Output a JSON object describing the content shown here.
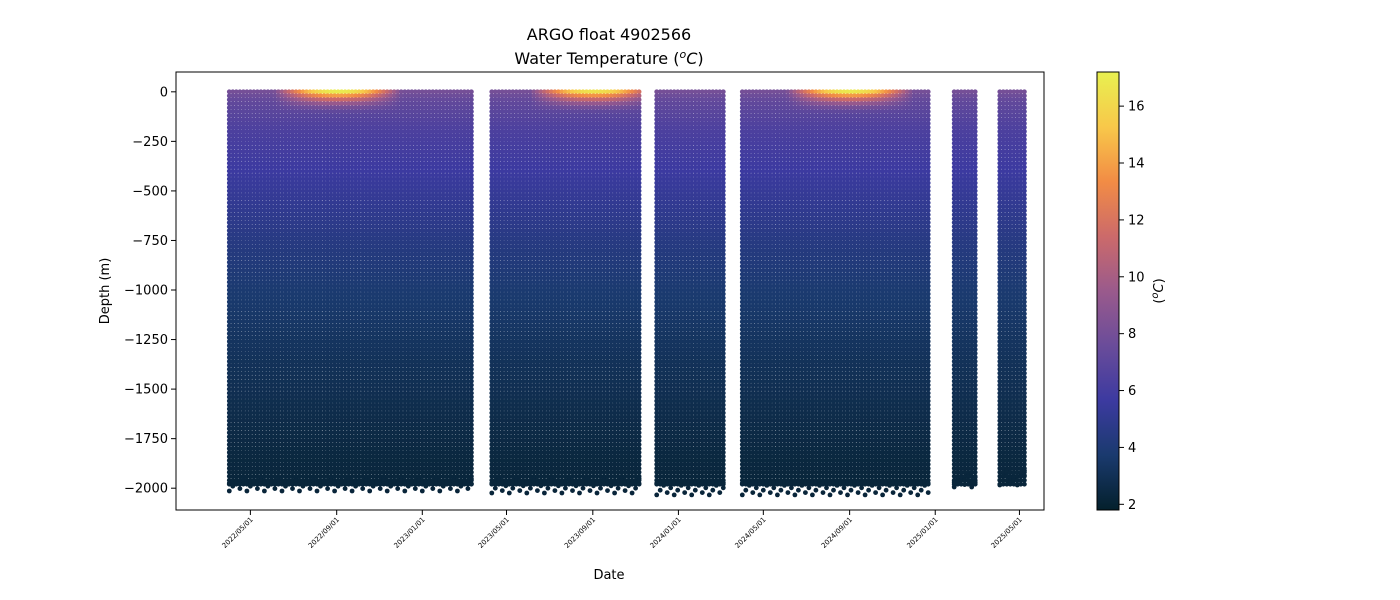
{
  "chart_data": {
    "type": "scatter",
    "title": "ARGO float 4902566",
    "subtitle": "Water Temperature (",
    "subtitle_unit": "o",
    "subtitle_unit_letter": "C",
    "subtitle_close": ")",
    "xlabel": "Date",
    "ylabel": "Depth (m)",
    "ylim": [
      -2110,
      100
    ],
    "xlim": [
      "2022-01-15",
      "2025-06-05"
    ],
    "grid": false,
    "y_ticks": [
      0,
      -250,
      -500,
      -750,
      -1000,
      -1250,
      -1500,
      -1750,
      -2000
    ],
    "y_tick_labels": [
      "0",
      "−250",
      "−500",
      "−750",
      "−1000",
      "−1250",
      "−1500",
      "−1750",
      "−2000"
    ],
    "x_ticks": [
      "2022-05-01",
      "2022-09-01",
      "2023-01-01",
      "2023-05-01",
      "2023-09-01",
      "2024-01-01",
      "2024-05-01",
      "2024-09-01",
      "2025-01-01",
      "2025-05-01"
    ],
    "x_tick_labels": [
      "2022/05/01",
      "2022/09/01",
      "2023/01/01",
      "2023/05/01",
      "2023/09/01",
      "2024/01/01",
      "2024/05/01",
      "2024/09/01",
      "2025/01/01",
      "2025/05/01"
    ],
    "colorbar": {
      "label_open": "(",
      "label_unit": "o",
      "label_letter": "C",
      "label_close": ")",
      "range": [
        1.8,
        17.2
      ],
      "ticks": [
        2,
        4,
        6,
        8,
        10,
        12,
        14,
        16
      ],
      "colormap": "thermal",
      "stops": [
        "#04202c",
        "#1a3a6e",
        "#3c3aa0",
        "#6a4c9a",
        "#9a5a8c",
        "#cc6a6a",
        "#f28c45",
        "#f8c84a",
        "#e8f050"
      ]
    },
    "series": [
      {
        "profiles": [
          {
            "segment": "2022-04 to 2023-03",
            "start": "2022-04-01",
            "end": "2023-03-15",
            "max_depth": -1990,
            "surface_temp_peak": 17.0
          },
          {
            "segment": "2023-04 to 2023-11",
            "start": "2023-04-10",
            "end": "2023-11-10",
            "max_depth": -2000,
            "surface_temp_peak": 16.5
          },
          {
            "segment": "2023-12 to 2024-03",
            "start": "2023-12-01",
            "end": "2024-03-05",
            "max_depth": -2010,
            "surface_temp_peak": 12.0
          },
          {
            "segment": "2024-04 to 2024-12",
            "start": "2024-04-01",
            "end": "2024-12-25",
            "max_depth": -2010,
            "surface_temp_peak": 16.8
          },
          {
            "segment": "2025-01 to 2025-02",
            "start": "2025-01-28",
            "end": "2025-03-01",
            "max_depth": -1970,
            "surface_temp_peak": 9.0
          },
          {
            "segment": "2025-04 to 2025-05",
            "start": "2025-04-03",
            "end": "2025-05-08",
            "max_depth": -1960,
            "surface_temp_peak": 9.5
          }
        ],
        "cycle_days": 5,
        "temperature_profile": [
          {
            "depth": 0,
            "temp": 8.0
          },
          {
            "depth": -50,
            "temp": 7.2
          },
          {
            "depth": -200,
            "temp": 6.3
          },
          {
            "depth": -500,
            "temp": 5.3
          },
          {
            "depth": -750,
            "temp": 4.5
          },
          {
            "depth": -1000,
            "temp": 3.8
          },
          {
            "depth": -1250,
            "temp": 3.3
          },
          {
            "depth": -1500,
            "temp": 2.9
          },
          {
            "depth": -1750,
            "temp": 2.5
          },
          {
            "depth": -2000,
            "temp": 2.2
          }
        ]
      }
    ]
  }
}
